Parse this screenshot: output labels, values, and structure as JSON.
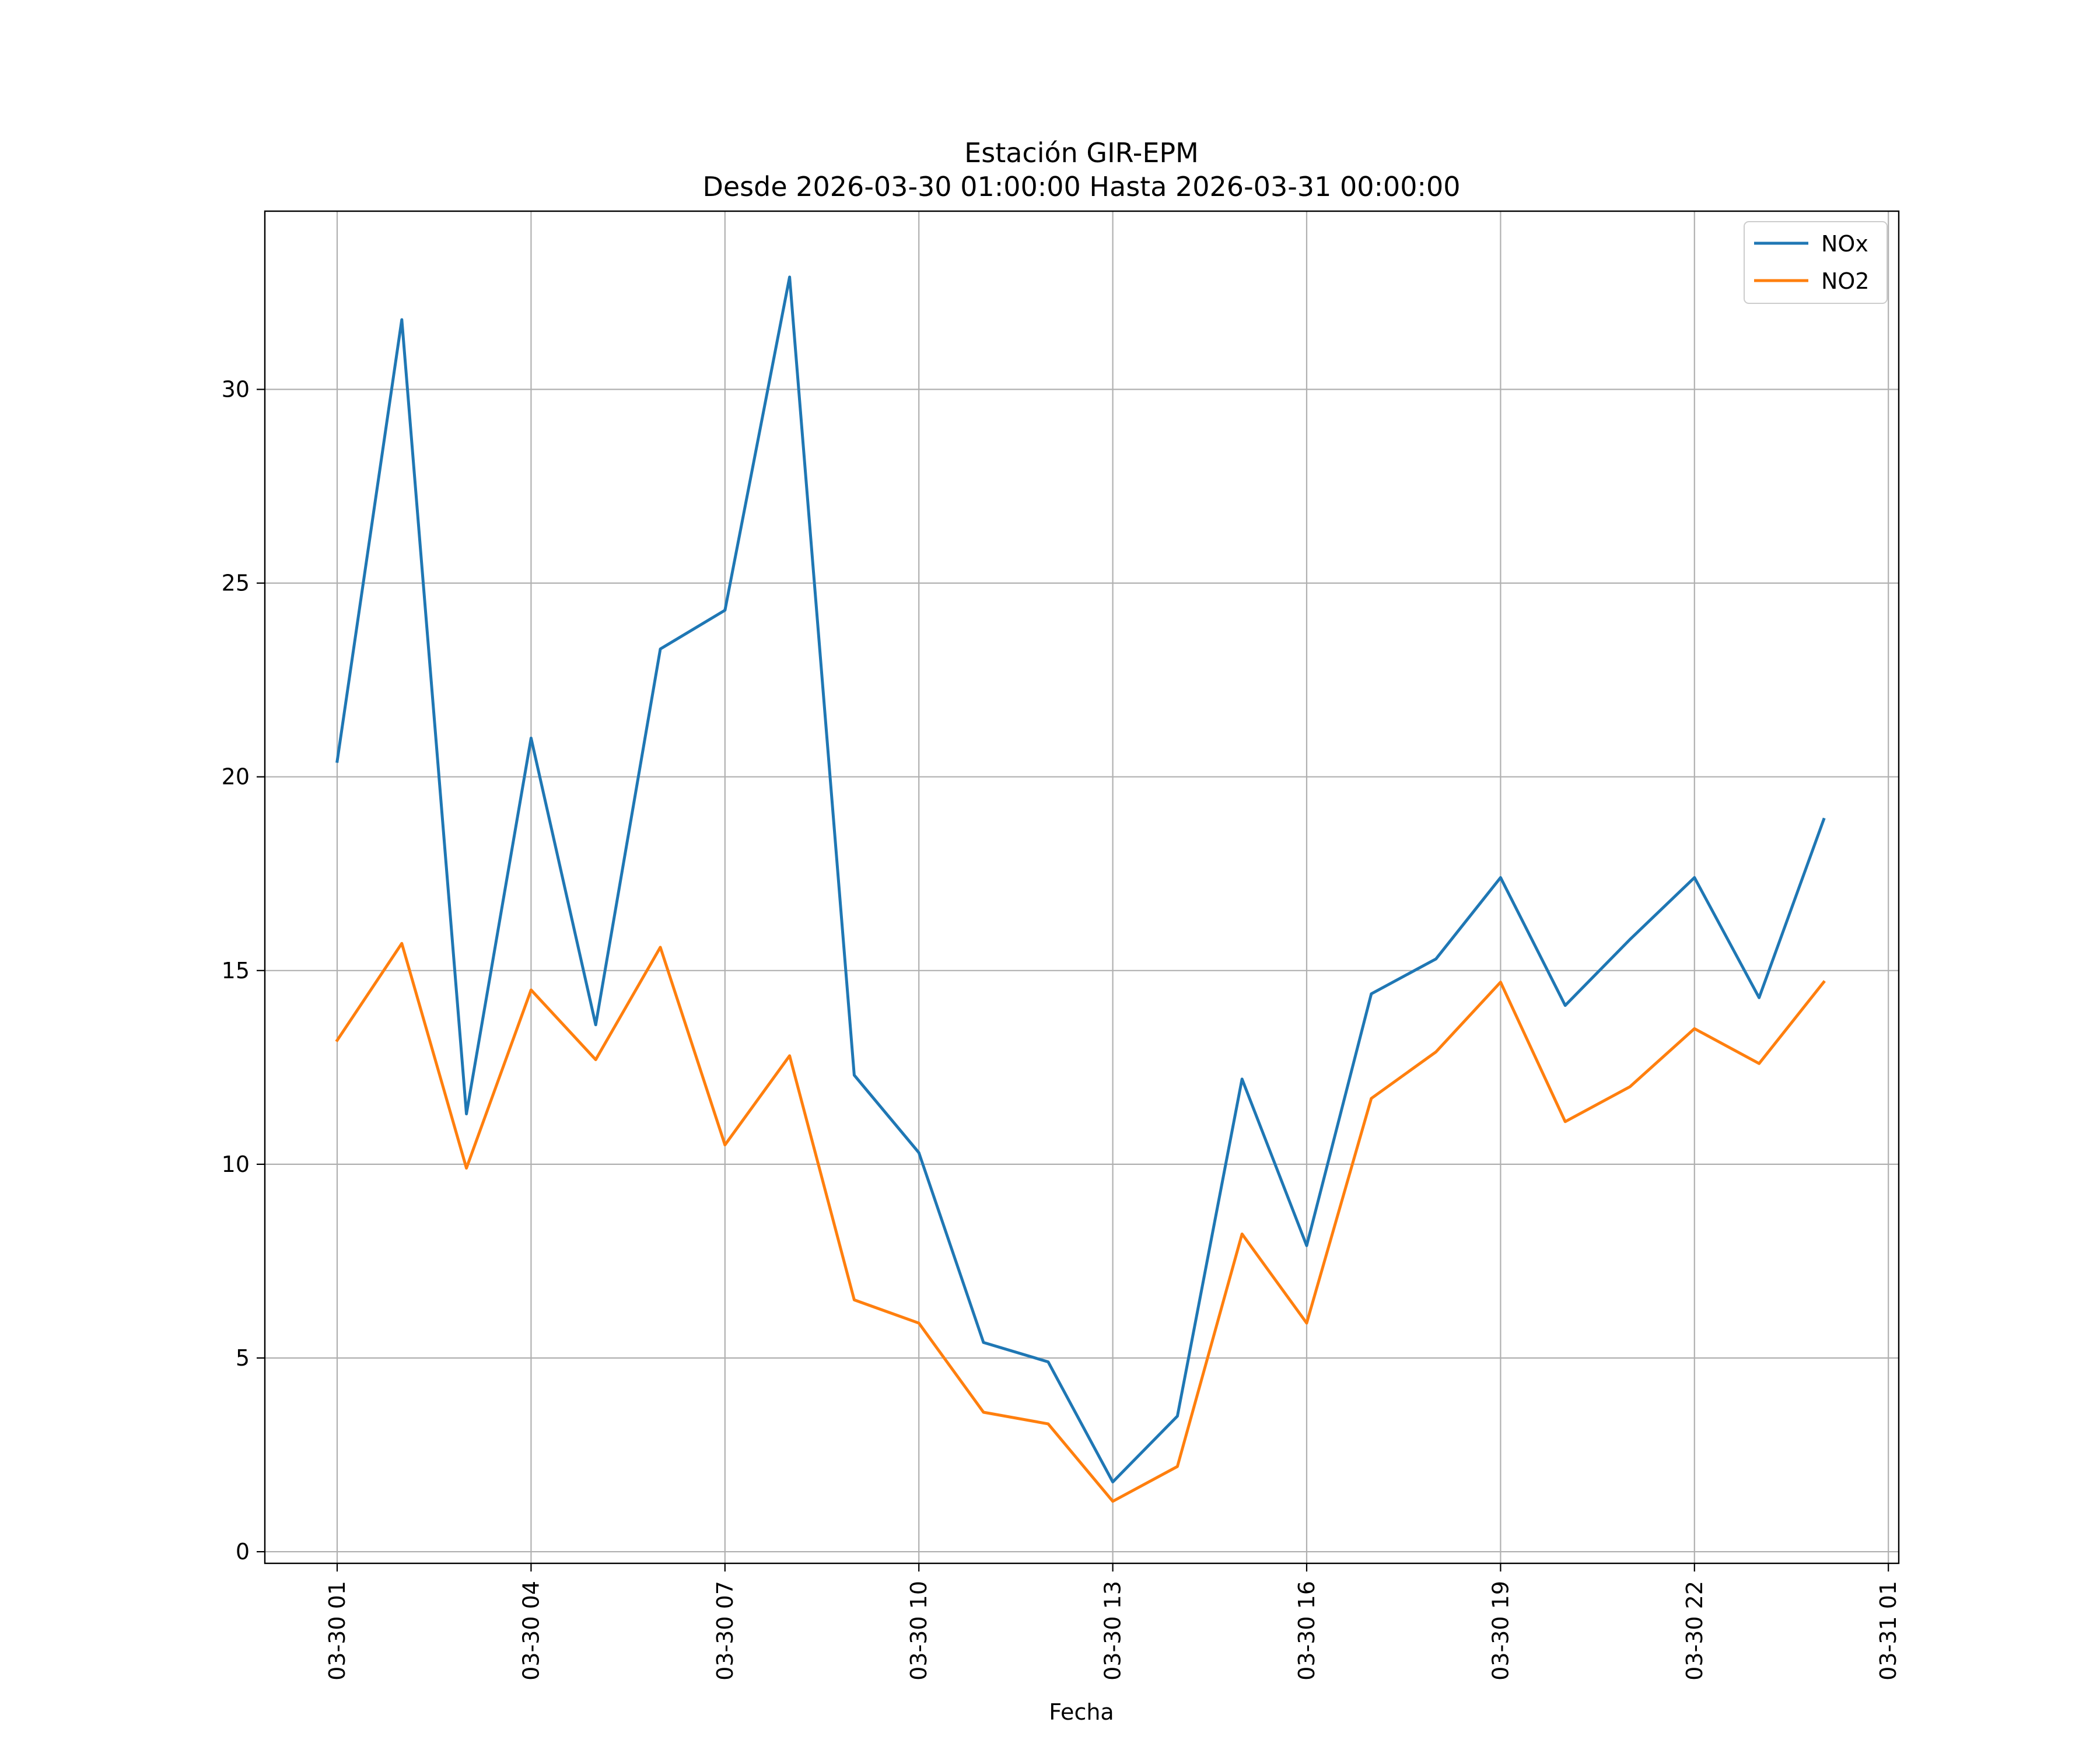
{
  "chart_data": {
    "type": "line",
    "title": "Estación GIR-EPM",
    "subtitle": "Desde 2026-03-30 01:00:00 Hasta 2026-03-31 00:00:00",
    "xlabel": "Fecha",
    "ylabel": "",
    "x": [
      "03-30 01",
      "03-30 02",
      "03-30 03",
      "03-30 04",
      "03-30 05",
      "03-30 06",
      "03-30 07",
      "03-30 08",
      "03-30 09",
      "03-30 10",
      "03-30 11",
      "03-30 12",
      "03-30 13",
      "03-30 14",
      "03-30 15",
      "03-30 16",
      "03-30 17",
      "03-30 18",
      "03-30 19",
      "03-30 20",
      "03-30 21",
      "03-30 22",
      "03-30 23",
      "03-31 00"
    ],
    "x_tick_labels": [
      "03-30 01",
      "03-30 04",
      "03-30 07",
      "03-30 10",
      "03-30 13",
      "03-30 16",
      "03-30 19",
      "03-30 22",
      "03-31 01"
    ],
    "y_tick_labels": [
      "0",
      "5",
      "10",
      "15",
      "20",
      "25",
      "30"
    ],
    "ylim": [
      -0.3,
      34.6
    ],
    "grid": true,
    "legend_position": "top-right",
    "series": [
      {
        "name": "NOx",
        "color": "#1f77b4",
        "values": [
          20.4,
          31.8,
          11.3,
          21.0,
          13.6,
          23.3,
          24.3,
          32.9,
          12.3,
          10.3,
          5.4,
          4.9,
          1.8,
          3.5,
          12.2,
          7.9,
          14.4,
          15.3,
          17.4,
          14.1,
          15.8,
          17.4,
          14.3,
          18.9
        ]
      },
      {
        "name": "NO2",
        "color": "#ff7f0e",
        "values": [
          13.2,
          15.7,
          9.9,
          14.5,
          12.7,
          15.6,
          10.5,
          12.8,
          6.5,
          5.9,
          3.6,
          3.3,
          1.3,
          2.2,
          8.2,
          5.9,
          11.7,
          12.9,
          14.7,
          11.1,
          12.0,
          13.5,
          12.6,
          14.7
        ]
      }
    ]
  }
}
